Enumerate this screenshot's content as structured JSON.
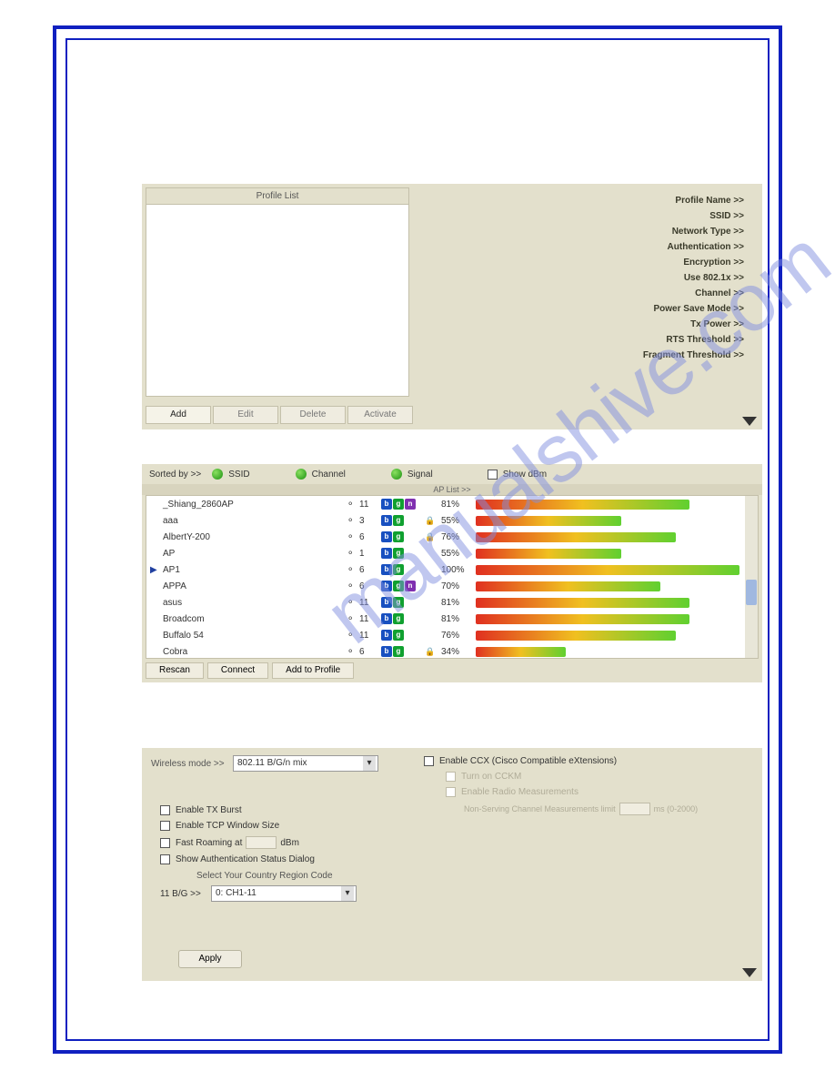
{
  "watermark_text": "manualshive.com",
  "panel1": {
    "title": "Profile List",
    "details": [
      "Profile Name >>",
      "SSID >>",
      "Network Type >>",
      "Authentication >>",
      "Encryption >>",
      "Use 802.1x >>",
      "Channel >>",
      "Power Save Mode >>",
      "Tx Power >>",
      "RTS Threshold >>",
      "Fragment Threshold >>"
    ],
    "buttons": [
      "Add",
      "Edit",
      "Delete",
      "Activate"
    ]
  },
  "panel2": {
    "sorted_by": "Sorted by >>",
    "sort_options": [
      "SSID",
      "Channel",
      "Signal"
    ],
    "show_dbm": "Show dBm",
    "list_title": "AP List >>",
    "selected_index": 4,
    "rows": [
      {
        "ssid": "_Shiang_2860AP",
        "ch": 11,
        "modes": [
          "b",
          "g",
          "n"
        ],
        "lock": false,
        "pct": 81
      },
      {
        "ssid": "aaa",
        "ch": 3,
        "modes": [
          "b",
          "g"
        ],
        "lock": true,
        "pct": 55
      },
      {
        "ssid": "AlbertY-200",
        "ch": 6,
        "modes": [
          "b",
          "g"
        ],
        "lock": true,
        "pct": 76
      },
      {
        "ssid": "AP",
        "ch": 1,
        "modes": [
          "b",
          "g"
        ],
        "lock": false,
        "pct": 55
      },
      {
        "ssid": "AP1",
        "ch": 6,
        "modes": [
          "b",
          "g"
        ],
        "lock": false,
        "pct": 100
      },
      {
        "ssid": "APPA",
        "ch": 6,
        "modes": [
          "b",
          "g",
          "n"
        ],
        "lock": false,
        "pct": 70
      },
      {
        "ssid": "asus",
        "ch": 11,
        "modes": [
          "b",
          "g"
        ],
        "lock": false,
        "pct": 81
      },
      {
        "ssid": "Broadcom",
        "ch": 11,
        "modes": [
          "b",
          "g"
        ],
        "lock": false,
        "pct": 81
      },
      {
        "ssid": "Buffalo 54",
        "ch": 11,
        "modes": [
          "b",
          "g"
        ],
        "lock": false,
        "pct": 76
      },
      {
        "ssid": "Cobra",
        "ch": 6,
        "modes": [
          "b",
          "g"
        ],
        "lock": true,
        "pct": 34
      }
    ],
    "buttons": [
      "Rescan",
      "Connect",
      "Add to Profile"
    ],
    "bar_colors": {
      "low": "#e03020",
      "mid": "#f0c020",
      "high": "#60d030"
    }
  },
  "panel3": {
    "wireless_mode_label": "Wireless mode >>",
    "wireless_mode_value": "802.11 B/G/n mix",
    "enable_ccx": "Enable CCX (Cisco Compatible eXtensions)",
    "turn_on_ccim": "Turn on CCKM",
    "enable_radio": "Enable Radio Measurements",
    "non_serving": "Non-Serving Channel Measurements limit",
    "non_serving_unit": "ms (0-2000)",
    "left_checks": [
      "Enable TX Burst",
      "Enable TCP Window Size",
      "Fast Roaming at",
      "Show Authentication Status Dialog"
    ],
    "fast_roaming_unit": "dBm",
    "region_label": "Select Your Country Region Code",
    "bg_label": "11 B/G >>",
    "bg_value": "0: CH1-11",
    "apply": "Apply"
  }
}
